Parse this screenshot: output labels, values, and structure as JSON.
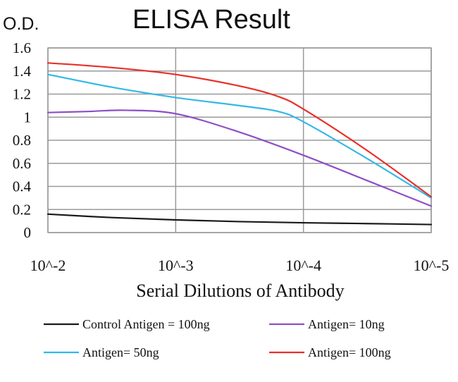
{
  "chart_data": {
    "type": "line",
    "title": "ELISA Result",
    "ylabel": "O.D.",
    "xlabel": "Serial Dilutions of Antibody",
    "x_ticks": [
      "10^-2",
      "10^-3",
      "10^-4",
      "10^-5"
    ],
    "y_ticks": [
      "0",
      "0.2",
      "0.4",
      "0.6",
      "0.8",
      "1",
      "1.2",
      "1.4",
      "1.6"
    ],
    "ylim": [
      0,
      1.6
    ],
    "grid": true,
    "legend_position": "bottom",
    "series": [
      {
        "name": "Control Antigen = 100ng",
        "color": "#1a1a1a",
        "x": [
          0,
          0.5,
          1,
          1.5,
          2,
          2.5,
          3
        ],
        "y": [
          0.16,
          0.13,
          0.11,
          0.095,
          0.085,
          0.078,
          0.07
        ]
      },
      {
        "name": "Antigen= 10ng",
        "color": "#8e4fc4",
        "x": [
          0,
          0.33,
          0.6,
          1,
          1.5,
          2,
          2.5,
          3
        ],
        "y": [
          1.04,
          1.05,
          1.06,
          1.03,
          0.87,
          0.67,
          0.45,
          0.23
        ]
      },
      {
        "name": "Antigen= 50ng",
        "color": "#33b8e6",
        "x": [
          0,
          0.5,
          1,
          1.5,
          1.8,
          2,
          2.5,
          3
        ],
        "y": [
          1.37,
          1.26,
          1.17,
          1.1,
          1.05,
          0.96,
          0.64,
          0.3
        ]
      },
      {
        "name": "Antigen= 100ng",
        "color": "#e8302a",
        "x": [
          0,
          0.5,
          1,
          1.5,
          1.8,
          2,
          2.5,
          3
        ],
        "y": [
          1.47,
          1.43,
          1.37,
          1.27,
          1.18,
          1.07,
          0.71,
          0.31
        ]
      }
    ]
  }
}
